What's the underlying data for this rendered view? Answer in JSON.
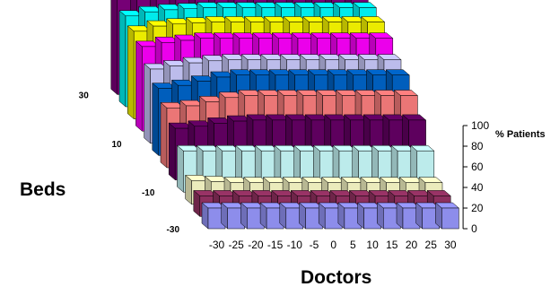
{
  "chart_data": {
    "type": "bar3d",
    "x_axis": {
      "label": "Doctors",
      "ticks": [
        "-30",
        "-25",
        "-20",
        "-15",
        "-10",
        "-5",
        "0",
        "5",
        "10",
        "15",
        "20",
        "25",
        "30"
      ]
    },
    "y_axis": {
      "label": "Beds",
      "ticks": [
        "30",
        "10",
        "-10",
        "-30"
      ]
    },
    "z_axis": {
      "label": "% Patients",
      "ticks": [
        "0",
        "20",
        "40",
        "60",
        "80",
        "100"
      ],
      "range": [
        0,
        100
      ]
    },
    "rows": [
      {
        "beds": -30,
        "color": "#9999ff",
        "values": [
          20,
          20,
          20,
          20,
          20,
          20,
          20,
          20,
          20,
          20,
          20,
          20,
          20
        ]
      },
      {
        "beds": -20,
        "color": "#993366",
        "values": [
          20,
          20,
          20,
          20,
          20,
          20,
          20,
          20,
          20,
          20,
          20,
          20,
          20
        ]
      },
      {
        "beds": -15,
        "color": "#ffffcc",
        "values": [
          23,
          22,
          21,
          21,
          21,
          21,
          21,
          21,
          21,
          21,
          21,
          21,
          21
        ]
      },
      {
        "beds": -10,
        "color": "#ccffff",
        "values": [
          40,
          40,
          40,
          40,
          40,
          40,
          40,
          40,
          40,
          40,
          40,
          40,
          40
        ]
      },
      {
        "beds": -5,
        "color": "#660066",
        "values": [
          50,
          52,
          55,
          57,
          58,
          58,
          58,
          58,
          58,
          58,
          58,
          58,
          58
        ]
      },
      {
        "beds": 0,
        "color": "#ff8080",
        "values": [
          58,
          60,
          64,
          68,
          70,
          70,
          70,
          70,
          70,
          70,
          70,
          70,
          70
        ]
      },
      {
        "beds": 5,
        "color": "#0066cc",
        "values": [
          65,
          68,
          72,
          76,
          78,
          78,
          78,
          78,
          78,
          78,
          78,
          78,
          78
        ]
      },
      {
        "beds": 10,
        "color": "#ccccff",
        "values": [
          72,
          75,
          78,
          80,
          81,
          81,
          81,
          81,
          81,
          81,
          81,
          81,
          81
        ]
      },
      {
        "beds": 15,
        "color": "#ff00ff",
        "values": [
          82,
          86,
          88,
          90,
          90,
          90,
          90,
          90,
          90,
          90,
          90,
          90,
          90
        ]
      },
      {
        "beds": 20,
        "color": "#ffff00",
        "values": [
          85,
          90,
          92,
          93,
          94,
          94,
          94,
          94,
          94,
          94,
          94,
          94,
          94
        ]
      },
      {
        "beds": 25,
        "color": "#00ffff",
        "values": [
          88,
          92,
          94,
          95,
          96,
          96,
          96,
          96,
          96,
          96,
          96,
          96,
          96
        ]
      },
      {
        "beds": 30,
        "color": "#800080",
        "values": [
          92,
          94,
          96,
          97,
          98,
          98,
          98,
          98,
          98,
          98,
          98,
          98,
          98
        ]
      }
    ]
  }
}
